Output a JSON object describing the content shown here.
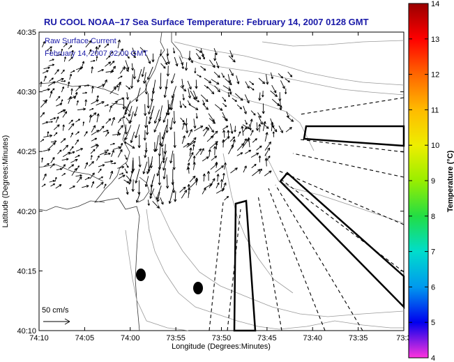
{
  "title": "RU COOL  NOAA–17  Sea Surface Temperature:  February 14, 2007 0128 GMT",
  "overlay": {
    "line1": "Raw Surface Current",
    "line2": "February 14, 2007 02:00 GMT"
  },
  "scale_label": "50 cm/s",
  "axes": {
    "xlabel": "Longitude (Degrees:Minutes)",
    "ylabel": "Latitude (Degrees:Minutes)",
    "xticks": [
      "74:10",
      "74:05",
      "74:00",
      "73:55",
      "73:50",
      "73:45",
      "73:40",
      "73:35",
      "73:3"
    ],
    "yticks": [
      "40:35",
      "40:30",
      "40:25",
      "40:20",
      "40:15",
      "40:10"
    ]
  },
  "colorbar": {
    "label": "Temperature (°C)",
    "ticks": [
      "14",
      "13",
      "12",
      "11",
      "10",
      "9",
      "8",
      "7",
      "6",
      "5",
      "4"
    ],
    "colors": [
      "#990000",
      "#ff0000",
      "#ff6600",
      "#ffbb00",
      "#eeee00",
      "#99ee00",
      "#22dd44",
      "#00ddcc",
      "#0099ee",
      "#0000ee",
      "#ff33dd"
    ]
  }
}
